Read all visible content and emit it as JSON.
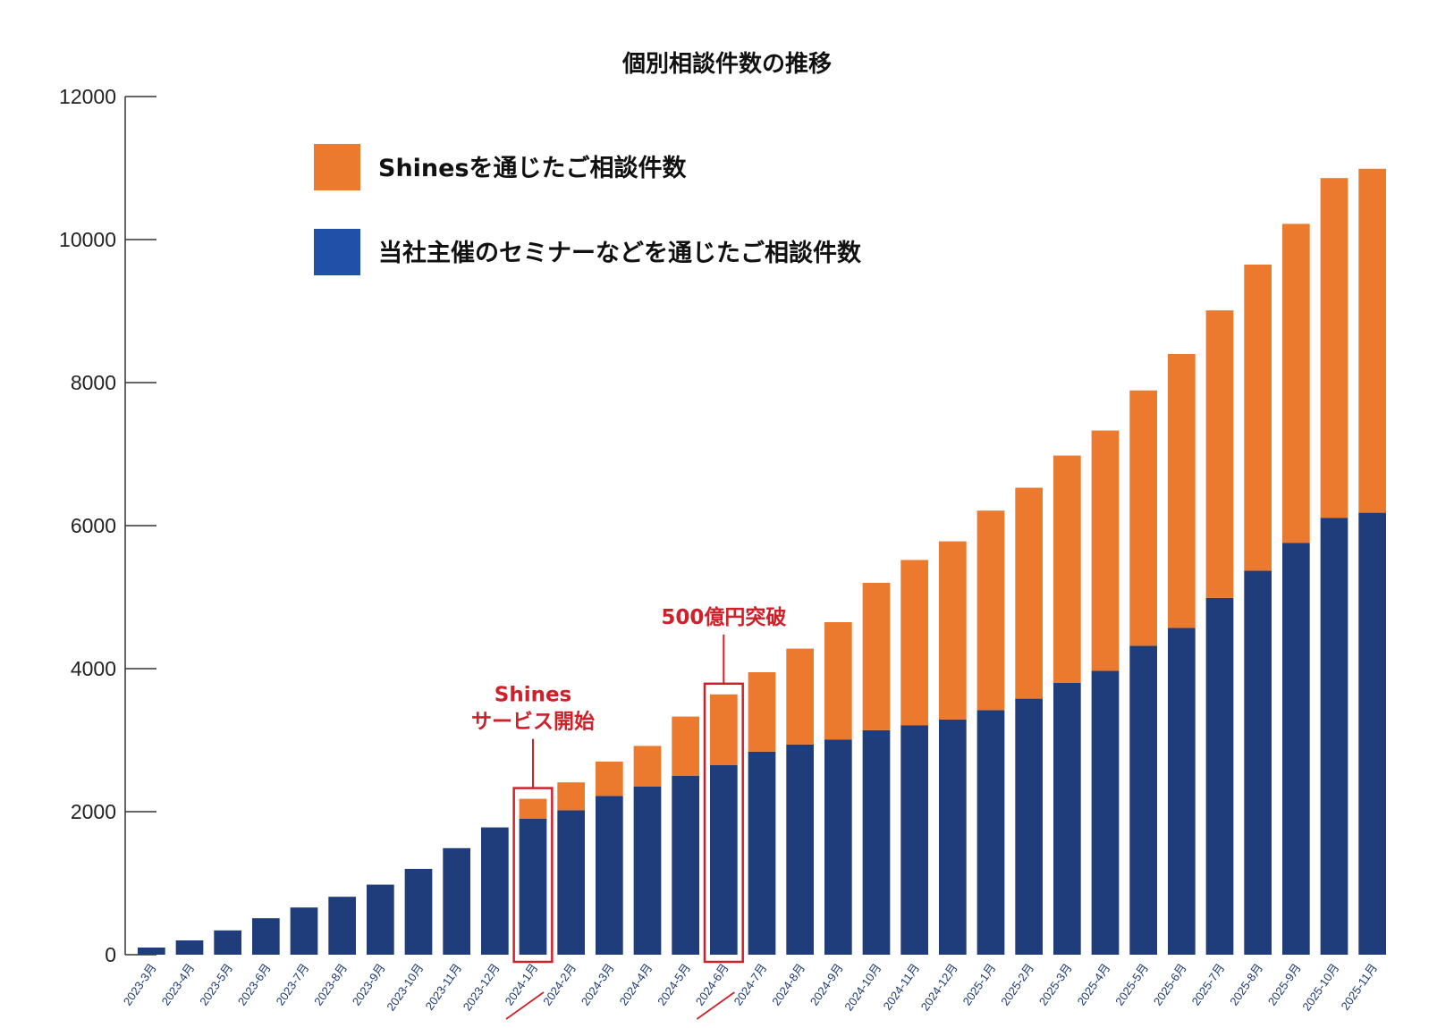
{
  "chart_data": {
    "type": "bar",
    "stacked": true,
    "title": "個別相談件数の推移",
    "xlabel": "",
    "ylabel": "",
    "ylim": [
      0,
      12000
    ],
    "yticks": [
      0,
      2000,
      4000,
      6000,
      8000,
      10000,
      12000
    ],
    "categories": [
      "2023-3月",
      "2023-4月",
      "2023-5月",
      "2023-6月",
      "2023-7月",
      "2023-8月",
      "2023-9月",
      "2023-10月",
      "2023-11月",
      "2023-12月",
      "2024-1月",
      "2024-2月",
      "2024-3月",
      "2024-4月",
      "2024-5月",
      "2024-6月",
      "2024-7月",
      "2024-8月",
      "2024-9月",
      "2024-10月",
      "2024-11月",
      "2024-12月",
      "2025-1月",
      "2025-2月",
      "2025-3月",
      "2025-4月",
      "2025-5月",
      "2025-6月",
      "2025-7月",
      "2025-8月",
      "2025-9月",
      "2025-10月",
      "2025-11月"
    ],
    "series": [
      {
        "name": "当社主催のセミナーなどを通じたご相談件数",
        "color": "#1f3d7a",
        "legend_color": "#2150a8",
        "values": [
          100,
          200,
          340,
          510,
          660,
          810,
          980,
          1200,
          1490,
          1780,
          1900,
          2020,
          2220,
          2350,
          2500,
          2650,
          2840,
          2940,
          3010,
          3140,
          3210,
          3290,
          3420,
          3580,
          3800,
          3970,
          4320,
          4570,
          4990,
          5370,
          5760,
          6110,
          6180
        ]
      },
      {
        "name": "Shinesを通じたご相談件数",
        "color": "#ec7a2e",
        "legend_color": "#ec7a2e",
        "values": [
          0,
          0,
          0,
          0,
          0,
          0,
          0,
          0,
          0,
          0,
          280,
          390,
          480,
          570,
          830,
          990,
          1110,
          1340,
          1640,
          2060,
          2310,
          2490,
          2790,
          2950,
          3180,
          3360,
          3570,
          3830,
          4020,
          4280,
          4460,
          4750,
          4810
        ]
      }
    ],
    "legend": [
      "Shinesを通じたご相談件数",
      "当社主催のセミナーなどを通じたご相談件数"
    ],
    "legend_position": "top-left",
    "annotations": [
      {
        "category_index": 10,
        "lines": [
          "Shines",
          "サービス開始"
        ],
        "color": "#d0202a"
      },
      {
        "category_index": 15,
        "lines": [
          "500億円突破"
        ],
        "color": "#d0202a"
      }
    ]
  }
}
